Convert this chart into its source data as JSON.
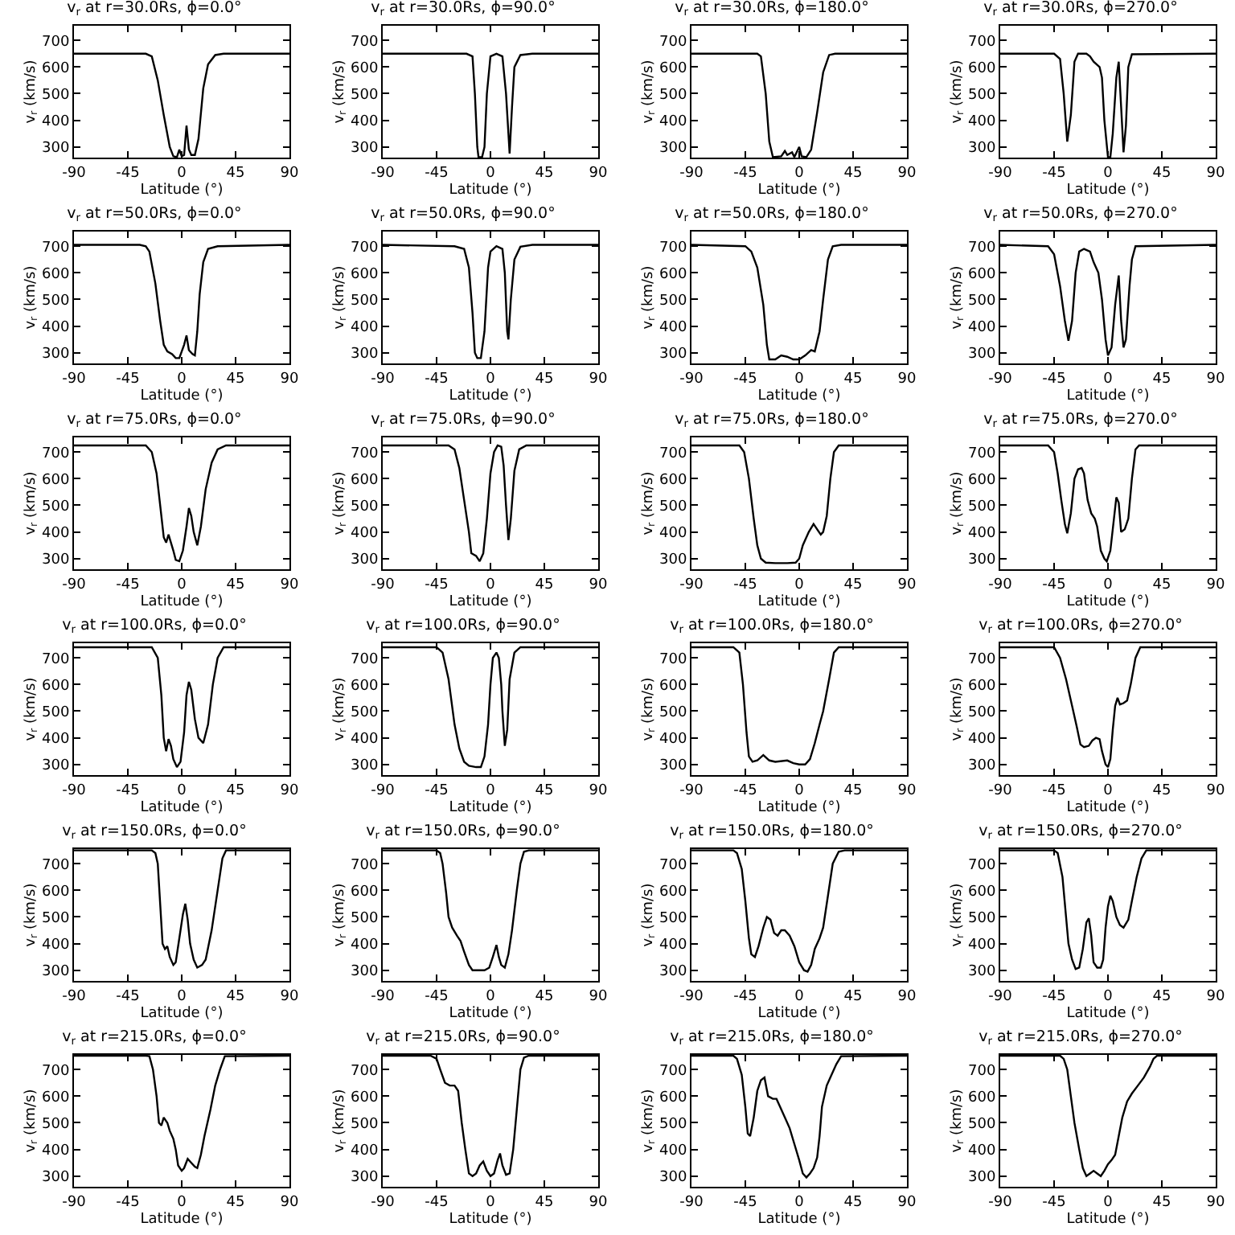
{
  "chart_data": [
    {
      "type": "line",
      "title": "v$_{r}$ at r=30.0Rs, ϕ=0.0°",
      "xlabel": "Latitude (°)",
      "ylabel": "v$_{r}$ (km/s)",
      "xlim": [
        -90,
        90
      ],
      "ylim": [
        260,
        755
      ],
      "xticks": [
        -90,
        -45,
        0,
        45,
        90
      ],
      "yticks": [
        300,
        400,
        500,
        600,
        700
      ],
      "x": [
        -90,
        -30,
        -25,
        -20,
        -15,
        -10,
        -7,
        -4,
        -2,
        0,
        2,
        4,
        6,
        8,
        11,
        14,
        18,
        22,
        28,
        35,
        90
      ],
      "series": [
        {
          "color": "#000000",
          "values": [
            650,
            650,
            640,
            550,
            420,
            300,
            265,
            262,
            290,
            265,
            270,
            380,
            290,
            270,
            270,
            330,
            520,
            610,
            645,
            650,
            650
          ]
        }
      ]
    },
    {
      "type": "line",
      "title": "v$_{r}$ at r=30.0Rs, ϕ=90.0°",
      "xlabel": "Latitude (°)",
      "ylabel": "v$_{r}$ (km/s)",
      "xlim": [
        -90,
        90
      ],
      "ylim": [
        260,
        755
      ],
      "xticks": [
        -90,
        -45,
        0,
        45,
        90
      ],
      "yticks": [
        300,
        400,
        500,
        600,
        700
      ],
      "x": [
        -90,
        -20,
        -15,
        -13,
        -11,
        -10,
        -7,
        -5,
        -3,
        0,
        5,
        10,
        13,
        15,
        16,
        18,
        20,
        25,
        35,
        90
      ],
      "series": [
        {
          "color": "#000000",
          "values": [
            650,
            650,
            640,
            500,
            300,
            262,
            262,
            300,
            500,
            640,
            650,
            640,
            500,
            350,
            275,
            450,
            600,
            645,
            650,
            650
          ]
        }
      ]
    },
    {
      "type": "line",
      "title": "v$_{r}$ at r=30.0Rs, ϕ=180.0°",
      "xlabel": "Latitude (°)",
      "ylabel": "v$_{r}$ (km/s)",
      "xlim": [
        -90,
        90
      ],
      "ylim": [
        260,
        755
      ],
      "xticks": [
        -90,
        -45,
        0,
        45,
        90
      ],
      "yticks": [
        300,
        400,
        500,
        600,
        700
      ],
      "x": [
        -90,
        -35,
        -32,
        -28,
        -25,
        -22,
        -15,
        -12,
        -10,
        -6,
        -4,
        0,
        2,
        6,
        10,
        15,
        20,
        25,
        30,
        90
      ],
      "series": [
        {
          "color": "#000000",
          "values": [
            650,
            650,
            640,
            500,
            320,
            262,
            265,
            285,
            270,
            280,
            262,
            300,
            265,
            262,
            290,
            430,
            580,
            645,
            650,
            650
          ]
        }
      ]
    },
    {
      "type": "line",
      "title": "v$_{r}$ at r=30.0Rs, ϕ=270.0°",
      "xlabel": "Latitude (°)",
      "ylabel": "v$_{r}$ (km/s)",
      "xlim": [
        -90,
        90
      ],
      "ylim": [
        260,
        755
      ],
      "xticks": [
        -90,
        -45,
        0,
        45,
        90
      ],
      "yticks": [
        300,
        400,
        500,
        600,
        700
      ],
      "x": [
        -90,
        -45,
        -40,
        -37,
        -34,
        -31,
        -28,
        -25,
        -18,
        -15,
        -12,
        -7,
        -5,
        -3,
        0,
        2,
        4,
        7,
        9,
        11,
        13,
        15,
        17,
        20,
        90
      ],
      "series": [
        {
          "color": "#000000",
          "values": [
            650,
            650,
            630,
            500,
            320,
            420,
            620,
            650,
            650,
            640,
            620,
            600,
            560,
            400,
            262,
            262,
            350,
            560,
            620,
            450,
            280,
            380,
            600,
            648,
            650
          ]
        }
      ]
    },
    {
      "type": "line",
      "title": "v$_{r}$ at r=50.0Rs, ϕ=0.0°",
      "xlabel": "Latitude (°)",
      "ylabel": "v$_{r}$ (km/s)",
      "xlim": [
        -90,
        90
      ],
      "ylim": [
        260,
        755
      ],
      "xticks": [
        -90,
        -45,
        0,
        45,
        90
      ],
      "yticks": [
        300,
        400,
        500,
        600,
        700
      ],
      "x": [
        -90,
        -35,
        -30,
        -27,
        -22,
        -18,
        -15,
        -12,
        -8,
        -5,
        -2,
        2,
        4,
        6,
        9,
        11,
        13,
        15,
        18,
        22,
        30,
        90
      ],
      "series": [
        {
          "color": "#000000",
          "values": [
            705,
            705,
            700,
            680,
            560,
            420,
            330,
            305,
            295,
            280,
            280,
            330,
            365,
            310,
            295,
            290,
            380,
            520,
            640,
            690,
            700,
            705
          ]
        }
      ]
    },
    {
      "type": "line",
      "title": "v$_{r}$ at r=50.0Rs, ϕ=90.0°",
      "xlabel": "Latitude (°)",
      "ylabel": "v$_{r}$ (km/s)",
      "xlim": [
        -90,
        90
      ],
      "ylim": [
        260,
        755
      ],
      "xticks": [
        -90,
        -45,
        0,
        45,
        90
      ],
      "yticks": [
        300,
        400,
        500,
        600,
        700
      ],
      "x": [
        -90,
        -30,
        -22,
        -18,
        -15,
        -13,
        -11,
        -8,
        -5,
        -2,
        0,
        5,
        10,
        12,
        14,
        15,
        17,
        20,
        25,
        35,
        90
      ],
      "series": [
        {
          "color": "#000000",
          "values": [
            705,
            700,
            690,
            620,
            450,
            300,
            280,
            280,
            380,
            620,
            680,
            700,
            690,
            600,
            380,
            350,
            500,
            650,
            698,
            705,
            705
          ]
        }
      ]
    },
    {
      "type": "line",
      "title": "v$_{r}$ at r=50.0Rs, ϕ=180.0°",
      "xlabel": "Latitude (°)",
      "ylabel": "v$_{r}$ (km/s)",
      "xlim": [
        -90,
        90
      ],
      "ylim": [
        260,
        755
      ],
      "xticks": [
        -90,
        -45,
        0,
        45,
        90
      ],
      "yticks": [
        300,
        400,
        500,
        600,
        700
      ],
      "x": [
        -90,
        -45,
        -40,
        -35,
        -30,
        -27,
        -25,
        -20,
        -15,
        -10,
        -5,
        0,
        5,
        10,
        13,
        17,
        20,
        24,
        28,
        35,
        90
      ],
      "series": [
        {
          "color": "#000000",
          "values": [
            705,
            700,
            680,
            620,
            480,
            330,
            275,
            275,
            290,
            285,
            275,
            275,
            290,
            310,
            305,
            380,
            500,
            650,
            700,
            705,
            705
          ]
        }
      ]
    },
    {
      "type": "line",
      "title": "v$_{r}$ at r=50.0Rs, ϕ=270.0°",
      "xlabel": "Latitude (°)",
      "ylabel": "v$_{r}$ (km/s)",
      "xlim": [
        -90,
        90
      ],
      "ylim": [
        260,
        755
      ],
      "xticks": [
        -90,
        -45,
        0,
        45,
        90
      ],
      "yticks": [
        300,
        400,
        500,
        600,
        700
      ],
      "x": [
        -90,
        -50,
        -45,
        -40,
        -36,
        -33,
        -30,
        -27,
        -24,
        -20,
        -15,
        -12,
        -8,
        -5,
        -2,
        0,
        3,
        6,
        9,
        11,
        13,
        15,
        18,
        20,
        23,
        90
      ],
      "series": [
        {
          "color": "#000000",
          "values": [
            705,
            700,
            670,
            550,
            420,
            345,
            420,
            600,
            680,
            690,
            680,
            640,
            600,
            500,
            350,
            290,
            320,
            480,
            590,
            420,
            320,
            350,
            550,
            650,
            700,
            705
          ]
        }
      ]
    },
    {
      "type": "line",
      "title": "v$_{r}$ at r=75.0Rs, ϕ=0.0°",
      "xlabel": "Latitude (°)",
      "ylabel": "v$_{r}$ (km/s)",
      "xlim": [
        -90,
        90
      ],
      "ylim": [
        260,
        755
      ],
      "xticks": [
        -90,
        -45,
        0,
        45,
        90
      ],
      "yticks": [
        300,
        400,
        500,
        600,
        700
      ],
      "x": [
        -90,
        -30,
        -25,
        -21,
        -18,
        -15,
        -13,
        -11,
        -9,
        -7,
        -5,
        -2,
        1,
        4,
        6,
        8,
        10,
        13,
        16,
        20,
        25,
        30,
        37,
        90
      ],
      "series": [
        {
          "color": "#000000",
          "values": [
            725,
            725,
            700,
            620,
            500,
            380,
            360,
            390,
            360,
            330,
            295,
            290,
            330,
            420,
            490,
            460,
            400,
            350,
            420,
            560,
            660,
            710,
            725,
            725
          ]
        }
      ]
    },
    {
      "type": "line",
      "title": "v$_{r}$ at r=75.0Rs, ϕ=90.0°",
      "xlabel": "Latitude (°)",
      "ylabel": "v$_{r}$ (km/s)",
      "xlim": [
        -90,
        90
      ],
      "ylim": [
        260,
        755
      ],
      "xticks": [
        -90,
        -45,
        0,
        45,
        90
      ],
      "yticks": [
        300,
        400,
        500,
        600,
        700
      ],
      "x": [
        -90,
        -35,
        -30,
        -26,
        -22,
        -18,
        -16,
        -12,
        -9,
        -6,
        -3,
        0,
        3,
        6,
        9,
        11,
        13,
        15,
        17,
        20,
        24,
        30,
        90
      ],
      "series": [
        {
          "color": "#000000",
          "values": [
            725,
            725,
            710,
            640,
            520,
            400,
            320,
            310,
            290,
            320,
            450,
            620,
            700,
            725,
            720,
            650,
            500,
            370,
            450,
            630,
            710,
            725,
            725
          ]
        }
      ]
    },
    {
      "type": "line",
      "title": "v$_{r}$ at r=75.0Rs, ϕ=180.0°",
      "xlabel": "Latitude (°)",
      "ylabel": "v$_{r}$ (km/s)",
      "xlim": [
        -90,
        90
      ],
      "ylim": [
        260,
        755
      ],
      "xticks": [
        -90,
        -45,
        0,
        45,
        90
      ],
      "yticks": [
        300,
        400,
        500,
        600,
        700
      ],
      "x": [
        -90,
        -50,
        -46,
        -42,
        -38,
        -35,
        -32,
        -28,
        -20,
        -10,
        -3,
        0,
        3,
        8,
        12,
        15,
        18,
        20,
        23,
        26,
        29,
        33,
        90
      ],
      "series": [
        {
          "color": "#000000",
          "values": [
            725,
            725,
            700,
            600,
            450,
            350,
            300,
            285,
            283,
            283,
            285,
            300,
            350,
            400,
            430,
            410,
            390,
            400,
            460,
            600,
            700,
            725,
            725
          ]
        }
      ]
    },
    {
      "type": "line",
      "title": "v$_{r}$ at r=75.0Rs, ϕ=270.0°",
      "xlabel": "Latitude (°)",
      "ylabel": "v$_{r}$ (km/s)",
      "xlim": [
        -90,
        90
      ],
      "ylim": [
        260,
        755
      ],
      "xticks": [
        -90,
        -45,
        0,
        45,
        90
      ],
      "yticks": [
        300,
        400,
        500,
        600,
        700
      ],
      "x": [
        -90,
        -50,
        -45,
        -42,
        -39,
        -36,
        -34,
        -31,
        -28,
        -25,
        -22,
        -20,
        -17,
        -14,
        -11,
        -9,
        -6,
        -3,
        -1,
        2,
        5,
        7,
        9,
        11,
        14,
        17,
        20,
        23,
        26,
        90
      ],
      "series": [
        {
          "color": "#000000",
          "values": [
            725,
            725,
            700,
            620,
            520,
            430,
            395,
            470,
            600,
            635,
            640,
            620,
            520,
            470,
            450,
            420,
            330,
            300,
            290,
            330,
            450,
            530,
            510,
            400,
            410,
            450,
            600,
            710,
            725,
            725
          ]
        }
      ]
    },
    {
      "type": "line",
      "title": "v$_{r}$ at r=100.0Rs, ϕ=0.0°",
      "xlabel": "Latitude (°)",
      "ylabel": "v$_{r}$ (km/s)",
      "xlim": [
        -90,
        90
      ],
      "ylim": [
        260,
        755
      ],
      "xticks": [
        -90,
        -45,
        0,
        45,
        90
      ],
      "yticks": [
        300,
        400,
        500,
        600,
        700
      ],
      "x": [
        -90,
        -25,
        -20,
        -17,
        -15,
        -13,
        -11,
        -9,
        -7,
        -4,
        -1,
        2,
        4,
        6,
        8,
        11,
        14,
        18,
        22,
        26,
        30,
        35,
        90
      ],
      "series": [
        {
          "color": "#000000",
          "values": [
            740,
            740,
            700,
            560,
            400,
            350,
            395,
            370,
            320,
            290,
            310,
            420,
            560,
            610,
            580,
            470,
            400,
            380,
            450,
            600,
            700,
            740,
            740
          ]
        }
      ]
    },
    {
      "type": "line",
      "title": "v$_{r}$ at r=100.0Rs, ϕ=90.0°",
      "xlabel": "Latitude (°)",
      "ylabel": "v$_{r}$ (km/s)",
      "xlim": [
        -90,
        90
      ],
      "ylim": [
        260,
        755
      ],
      "xticks": [
        -90,
        -45,
        0,
        45,
        90
      ],
      "yticks": [
        300,
        400,
        500,
        600,
        700
      ],
      "x": [
        -90,
        -45,
        -40,
        -35,
        -30,
        -26,
        -22,
        -18,
        -12,
        -8,
        -5,
        -2,
        0,
        2,
        5,
        7,
        9,
        10,
        12,
        14,
        16,
        20,
        25,
        90
      ],
      "series": [
        {
          "color": "#000000",
          "values": [
            740,
            740,
            720,
            620,
            450,
            360,
            310,
            295,
            290,
            290,
            330,
            450,
            600,
            700,
            720,
            700,
            600,
            500,
            370,
            430,
            620,
            720,
            740,
            740
          ]
        }
      ]
    },
    {
      "type": "line",
      "title": "v$_{r}$ at r=100.0Rs, ϕ=180.0°",
      "xlabel": "Latitude (°)",
      "ylabel": "v$_{r}$ (km/s)",
      "xlim": [
        -90,
        90
      ],
      "ylim": [
        260,
        755
      ],
      "xticks": [
        -90,
        -45,
        0,
        45,
        90
      ],
      "yticks": [
        300,
        400,
        500,
        600,
        700
      ],
      "x": [
        -90,
        -55,
        -50,
        -47,
        -44,
        -42,
        -39,
        -35,
        -30,
        -25,
        -20,
        -10,
        -5,
        0,
        5,
        9,
        13,
        17,
        20,
        25,
        29,
        33,
        90
      ],
      "series": [
        {
          "color": "#000000",
          "values": [
            740,
            740,
            720,
            600,
            420,
            330,
            310,
            315,
            335,
            315,
            310,
            315,
            305,
            300,
            300,
            320,
            380,
            450,
            500,
            620,
            720,
            740,
            740
          ]
        }
      ]
    },
    {
      "type": "line",
      "title": "v$_{r}$ at r=100.0Rs, ϕ=270.0°",
      "xlabel": "Latitude (°)",
      "ylabel": "v$_{r}$ (km/s)",
      "xlim": [
        -90,
        90
      ],
      "ylim": [
        260,
        755
      ],
      "xticks": [
        -90,
        -45,
        0,
        45,
        90
      ],
      "yticks": [
        300,
        400,
        500,
        600,
        700
      ],
      "x": [
        -90,
        -45,
        -40,
        -35,
        -30,
        -26,
        -23,
        -20,
        -16,
        -13,
        -10,
        -7,
        -5,
        -2,
        0,
        2,
        4,
        6,
        8,
        10,
        13,
        16,
        19,
        23,
        27,
        90
      ],
      "series": [
        {
          "color": "#000000",
          "values": [
            740,
            740,
            700,
            620,
            520,
            440,
            375,
            365,
            370,
            390,
            400,
            395,
            350,
            300,
            290,
            320,
            430,
            520,
            550,
            525,
            530,
            540,
            600,
            700,
            740,
            740
          ]
        }
      ]
    },
    {
      "type": "line",
      "title": "v$_{r}$ at r=150.0Rs, ϕ=0.0°",
      "xlabel": "Latitude (°)",
      "ylabel": "v$_{r}$ (km/s)",
      "xlim": [
        -90,
        90
      ],
      "ylim": [
        260,
        755
      ],
      "xticks": [
        -90,
        -45,
        0,
        45,
        90
      ],
      "yticks": [
        300,
        400,
        500,
        600,
        700
      ],
      "x": [
        -90,
        -25,
        -22,
        -20,
        -18,
        -16,
        -14,
        -12,
        -10,
        -7,
        -5,
        -2,
        1,
        3,
        5,
        7,
        10,
        13,
        17,
        20,
        25,
        30,
        34,
        37,
        90
      ],
      "series": [
        {
          "color": "#000000",
          "values": [
            750,
            750,
            740,
            700,
            550,
            400,
            380,
            390,
            350,
            320,
            330,
            420,
            510,
            550,
            490,
            400,
            340,
            310,
            320,
            340,
            450,
            600,
            720,
            750,
            750
          ]
        }
      ]
    },
    {
      "type": "line",
      "title": "v$_{r}$ at r=150.0Rs, ϕ=90.0°",
      "xlabel": "Latitude (°)",
      "ylabel": "v$_{r}$ (km/s)",
      "xlim": [
        -90,
        90
      ],
      "ylim": [
        260,
        755
      ],
      "xticks": [
        -90,
        -45,
        0,
        45,
        90
      ],
      "yticks": [
        300,
        400,
        500,
        600,
        700
      ],
      "x": [
        -90,
        -45,
        -42,
        -40,
        -37,
        -35,
        -32,
        -28,
        -25,
        -22,
        -18,
        -15,
        -10,
        -5,
        -1,
        2,
        5,
        7,
        9,
        12,
        15,
        18,
        22,
        25,
        28,
        32,
        90
      ],
      "series": [
        {
          "color": "#000000",
          "values": [
            750,
            750,
            740,
            700,
            590,
            500,
            460,
            430,
            410,
            370,
            320,
            300,
            300,
            300,
            310,
            350,
            395,
            350,
            320,
            310,
            360,
            450,
            600,
            700,
            745,
            750,
            750
          ]
        }
      ]
    },
    {
      "type": "line",
      "title": "v$_{r}$ at r=150.0Rs, ϕ=180.0°",
      "xlabel": "Latitude (°)",
      "ylabel": "v$_{r}$ (km/s)",
      "xlim": [
        -90,
        90
      ],
      "ylim": [
        260,
        755
      ],
      "xticks": [
        -90,
        -45,
        0,
        45,
        90
      ],
      "yticks": [
        300,
        400,
        500,
        600,
        700
      ],
      "x": [
        -90,
        -55,
        -52,
        -48,
        -45,
        -42,
        -40,
        -37,
        -34,
        -30,
        -27,
        -24,
        -21,
        -18,
        -15,
        -12,
        -8,
        -4,
        0,
        4,
        7,
        10,
        13,
        17,
        20,
        24,
        28,
        33,
        38,
        90
      ],
      "series": [
        {
          "color": "#000000",
          "values": [
            750,
            750,
            740,
            680,
            560,
            420,
            360,
            350,
            390,
            460,
            500,
            490,
            440,
            430,
            450,
            450,
            430,
            390,
            330,
            300,
            295,
            320,
            380,
            420,
            460,
            580,
            700,
            745,
            750,
            750
          ]
        }
      ]
    },
    {
      "type": "line",
      "title": "v$_{r}$ at r=150.0Rs, ϕ=270.0°",
      "xlabel": "Latitude (°)",
      "ylabel": "v$_{r}$ (km/s)",
      "xlim": [
        -90,
        90
      ],
      "ylim": [
        260,
        755
      ],
      "xticks": [
        -90,
        -45,
        0,
        45,
        90
      ],
      "yticks": [
        300,
        400,
        500,
        600,
        700
      ],
      "x": [
        -90,
        -45,
        -42,
        -38,
        -35,
        -33,
        -30,
        -27,
        -24,
        -21,
        -18,
        -16,
        -14,
        -12,
        -9,
        -6,
        -4,
        -2,
        0,
        2,
        4,
        7,
        10,
        13,
        17,
        20,
        24,
        28,
        32,
        90
      ],
      "series": [
        {
          "color": "#000000",
          "values": [
            750,
            750,
            740,
            650,
            500,
            400,
            340,
            305,
            310,
            380,
            480,
            495,
            430,
            330,
            310,
            310,
            340,
            460,
            540,
            580,
            560,
            500,
            470,
            460,
            490,
            560,
            650,
            720,
            750,
            750
          ]
        }
      ]
    },
    {
      "type": "line",
      "title": "v$_{r}$ at r=215.0Rs, ϕ=0.0°",
      "xlabel": "Latitude (°)",
      "ylabel": "v$_{r}$ (km/s)",
      "xlim": [
        -90,
        90
      ],
      "ylim": [
        260,
        755
      ],
      "xticks": [
        -90,
        -45,
        0,
        45,
        90
      ],
      "yticks": [
        300,
        400,
        500,
        600,
        700
      ],
      "x": [
        -90,
        -30,
        -27,
        -24,
        -21,
        -19,
        -17,
        -15,
        -12,
        -10,
        -7,
        -5,
        -3,
        0,
        2,
        5,
        8,
        11,
        13,
        16,
        19,
        24,
        28,
        32,
        36,
        90
      ],
      "series": [
        {
          "color": "#000000",
          "values": [
            752,
            752,
            750,
            700,
            600,
            500,
            490,
            520,
            500,
            470,
            440,
            400,
            340,
            320,
            330,
            365,
            350,
            335,
            330,
            380,
            450,
            550,
            640,
            700,
            750,
            752
          ]
        }
      ]
    },
    {
      "type": "line",
      "title": "v$_{r}$ at r=215.0Rs, ϕ=90.0°",
      "xlabel": "Latitude (°)",
      "ylabel": "v$_{r}$ (km/s)",
      "xlim": [
        -90,
        90
      ],
      "ylim": [
        260,
        755
      ],
      "xticks": [
        -90,
        -45,
        0,
        45,
        90
      ],
      "yticks": [
        300,
        400,
        500,
        600,
        700
      ],
      "x": [
        -90,
        -50,
        -45,
        -42,
        -38,
        -34,
        -30,
        -27,
        -24,
        -21,
        -18,
        -15,
        -12,
        -9,
        -6,
        -3,
        0,
        3,
        6,
        8,
        10,
        13,
        16,
        19,
        22,
        25,
        28,
        32,
        90
      ],
      "series": [
        {
          "color": "#000000",
          "values": [
            752,
            752,
            740,
            700,
            650,
            640,
            640,
            620,
            500,
            400,
            310,
            300,
            310,
            340,
            355,
            320,
            300,
            310,
            360,
            385,
            340,
            305,
            310,
            400,
            550,
            700,
            745,
            752,
            752
          ]
        }
      ]
    },
    {
      "type": "line",
      "title": "v$_{r}$ at r=215.0Rs, ϕ=180.0°",
      "xlabel": "Latitude (°)",
      "ylabel": "v$_{r}$ (km/s)",
      "xlim": [
        -90,
        90
      ],
      "ylim": [
        260,
        755
      ],
      "xticks": [
        -90,
        -45,
        0,
        45,
        90
      ],
      "yticks": [
        300,
        400,
        500,
        600,
        700
      ],
      "x": [
        -90,
        -55,
        -52,
        -48,
        -45,
        -43,
        -41,
        -38,
        -35,
        -32,
        -29,
        -26,
        -22,
        -19,
        -16,
        -12,
        -8,
        -4,
        0,
        3,
        6,
        9,
        12,
        15,
        17,
        19,
        23,
        27,
        31,
        35,
        90
      ],
      "series": [
        {
          "color": "#000000",
          "values": [
            752,
            752,
            740,
            680,
            560,
            460,
            450,
            520,
            620,
            660,
            670,
            600,
            590,
            590,
            560,
            520,
            480,
            420,
            360,
            310,
            295,
            310,
            330,
            370,
            450,
            560,
            640,
            680,
            720,
            750,
            752
          ]
        }
      ]
    },
    {
      "type": "line",
      "title": "v$_{r}$ at r=215.0Rs, ϕ=270.0°",
      "xlabel": "Latitude (°)",
      "ylabel": "v$_{r}$ (km/s)",
      "xlim": [
        -90,
        90
      ],
      "ylim": [
        260,
        755
      ],
      "xticks": [
        -90,
        -45,
        0,
        45,
        90
      ],
      "yticks": [
        300,
        400,
        500,
        600,
        700
      ],
      "x": [
        -90,
        -40,
        -37,
        -34,
        -31,
        -28,
        -24,
        -21,
        -18,
        -15,
        -12,
        -9,
        -6,
        -3,
        0,
        3,
        6,
        9,
        12,
        16,
        20,
        25,
        30,
        35,
        38,
        41,
        90
      ],
      "series": [
        {
          "color": "#000000",
          "values": [
            752,
            752,
            740,
            700,
            600,
            500,
            400,
            330,
            300,
            310,
            320,
            310,
            300,
            320,
            345,
            360,
            380,
            450,
            520,
            580,
            610,
            640,
            670,
            710,
            740,
            752,
            752
          ]
        }
      ]
    }
  ]
}
